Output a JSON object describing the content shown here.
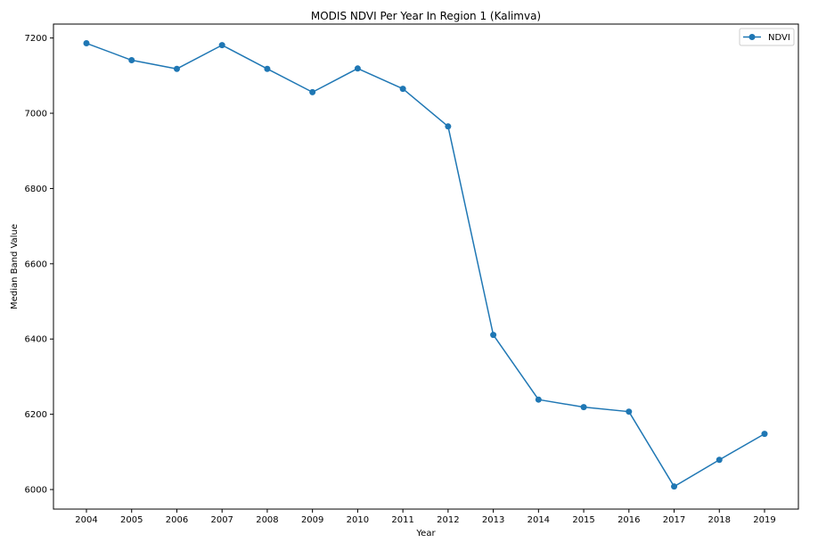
{
  "chart_data": {
    "type": "line",
    "title": "MODIS NDVI Per Year In Region 1 (Kalimva)",
    "xlabel": "Year",
    "ylabel": "Median Band Value",
    "categories": [
      "2004",
      "2005",
      "2006",
      "2007",
      "2008",
      "2009",
      "2010",
      "2011",
      "2012",
      "2013",
      "2014",
      "2015",
      "2016",
      "2017",
      "2018",
      "2019"
    ],
    "series": [
      {
        "name": "NDVI",
        "values": [
          7186,
          7141,
          7118,
          7181,
          7118,
          7056,
          7119,
          7065,
          6965,
          6411,
          6239,
          6219,
          6207,
          6008,
          6079,
          6148
        ],
        "color": "#1f77b4",
        "marker": "circle"
      }
    ],
    "yticks": [
      6000,
      6200,
      6400,
      6600,
      6800,
      7000,
      7200
    ],
    "ylim": [
      5948,
      7237
    ],
    "legend_position": "upper-right",
    "grid": false
  }
}
